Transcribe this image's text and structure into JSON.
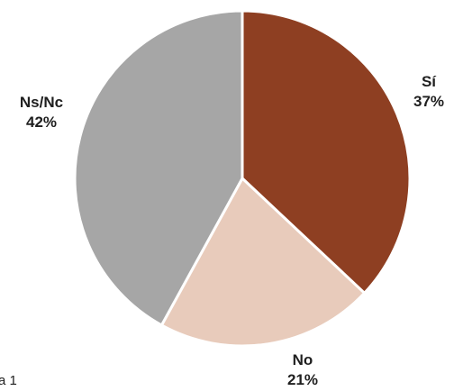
{
  "chart_data": {
    "type": "pie",
    "title": "",
    "categories": [
      "Sí",
      "No",
      "Ns/Nc"
    ],
    "values": [
      37,
      21,
      42
    ],
    "value_labels": [
      "37%",
      "21%",
      "42%"
    ],
    "colors": [
      "#8e3f22",
      "#e8cbbb",
      "#a6a6a6"
    ],
    "start": "12 o'clock",
    "direction": "clockwise",
    "legend": "none"
  },
  "footnote": "a 1"
}
